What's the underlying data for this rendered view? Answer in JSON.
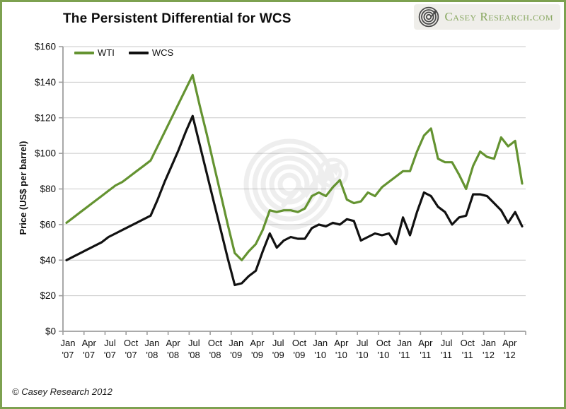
{
  "header": {
    "title": "The Persistent Differential for WCS",
    "logo_text": "Casey Research.com"
  },
  "footer": {
    "copyright": "© Casey Research 2012"
  },
  "colors": {
    "wti_green": "#649331",
    "wcs_black": "#111111",
    "frame_green": "#7da150",
    "logo_green": "#87a75f",
    "grid_gray": "#c9c9c9",
    "axis_gray": "#9e9e9e",
    "watermark_gray": "#808080"
  },
  "chart_data": {
    "type": "line",
    "title": "The Persistent Differential for WCS",
    "xlabel": "",
    "ylabel": "Price (US$ per barrel)",
    "ylim": [
      0,
      160
    ],
    "grid": "horizontal",
    "legend_position": "top-left",
    "x_unit": "month",
    "x_start_month": "Jan 2007",
    "x_end_month": "Jun 2012",
    "y_tick_values": [
      0,
      20,
      40,
      60,
      80,
      100,
      120,
      140,
      160
    ],
    "y_tick_labels": [
      "$0",
      "$20",
      "$40",
      "$60",
      "$80",
      "$100",
      "$120",
      "$140",
      "$160"
    ],
    "x_tick_labels": [
      {
        "month": "Jan",
        "year": "'07"
      },
      {
        "month": "Apr",
        "year": "'07"
      },
      {
        "month": "Jul",
        "year": "'07"
      },
      {
        "month": "Oct",
        "year": "'07"
      },
      {
        "month": "Jan",
        "year": "'08"
      },
      {
        "month": "Apr",
        "year": "'08"
      },
      {
        "month": "Jul",
        "year": "'08"
      },
      {
        "month": "Oct",
        "year": "'08"
      },
      {
        "month": "Jan",
        "year": "'09"
      },
      {
        "month": "Apr",
        "year": "'09"
      },
      {
        "month": "Jul",
        "year": "'09"
      },
      {
        "month": "Oct",
        "year": "'09"
      },
      {
        "month": "Jan",
        "year": "'10"
      },
      {
        "month": "Apr",
        "year": "'10"
      },
      {
        "month": "Jul",
        "year": "'10"
      },
      {
        "month": "Oct",
        "year": "'10"
      },
      {
        "month": "Jan",
        "year": "'11"
      },
      {
        "month": "Apr",
        "year": "'11"
      },
      {
        "month": "Jul",
        "year": "'11"
      },
      {
        "month": "Oct",
        "year": "'11"
      },
      {
        "month": "Jan",
        "year": "'12"
      },
      {
        "month": "Apr",
        "year": "'12"
      }
    ],
    "series": [
      {
        "name": "WTI",
        "color": "#649331",
        "values": [
          61,
          64,
          67,
          70,
          73,
          76,
          79,
          82,
          84,
          87,
          90,
          93,
          96,
          104,
          112,
          120,
          128,
          136,
          144,
          127,
          111,
          94,
          77,
          60,
          44,
          40,
          45,
          49,
          57,
          68,
          67,
          68,
          68,
          67,
          69,
          76,
          78,
          76,
          81,
          85,
          74,
          72,
          73,
          78,
          76,
          81,
          84,
          87,
          90,
          90,
          101,
          110,
          114,
          97,
          95,
          95,
          88,
          80,
          93,
          101,
          98,
          97,
          109,
          104,
          107,
          83
        ]
      },
      {
        "name": "WCS",
        "color": "#111111",
        "values": [
          40,
          42,
          44,
          46,
          48,
          50,
          53,
          55,
          57,
          59,
          61,
          63,
          65,
          74,
          84,
          93,
          102,
          112,
          121,
          105,
          89,
          73,
          57,
          41,
          26,
          27,
          31,
          34,
          45,
          55,
          47,
          51,
          53,
          52,
          52,
          58,
          60,
          59,
          61,
          60,
          63,
          62,
          51,
          53,
          55,
          54,
          55,
          49,
          64,
          54,
          67,
          78,
          76,
          70,
          67,
          60,
          64,
          65,
          77,
          77,
          76,
          72,
          68,
          61,
          67,
          59
        ]
      }
    ]
  }
}
